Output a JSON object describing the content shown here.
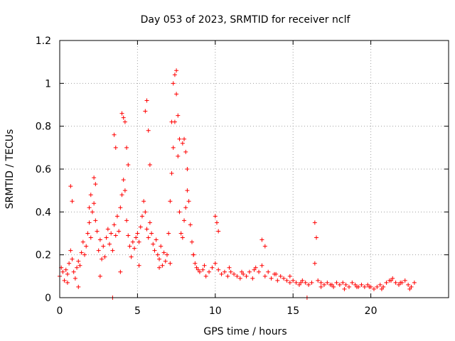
{
  "chart_data": {
    "type": "scatter",
    "title": "Day 053 of 2023, SRMTID for receiver nclf",
    "xlabel": "GPS time / hours",
    "ylabel": "SRMTID / TECUs",
    "xlim": [
      0,
      25
    ],
    "ylim": [
      0,
      1.2
    ],
    "xticks": [
      0,
      5,
      10,
      15,
      20
    ],
    "xtick_labels": [
      "0",
      "5",
      "10",
      "15",
      "20"
    ],
    "yticks": [
      0,
      0.2,
      0.4,
      0.6,
      0.8,
      1.0,
      1.2
    ],
    "ytick_labels": [
      "0",
      "0.2",
      "0.4",
      "0.6",
      "0.8",
      "1",
      "1.2"
    ],
    "grid": true,
    "legend": "none",
    "marker": "plus",
    "color": "#ff0000",
    "series": [
      {
        "name": "SRMTID",
        "x": [
          0.0,
          0.1,
          0.2,
          0.3,
          0.4,
          0.5,
          0.6,
          0.7,
          0.8,
          0.9,
          1.0,
          1.1,
          1.2,
          1.3,
          1.4,
          1.5,
          1.6,
          1.7,
          1.8,
          1.9,
          2.0,
          2.1,
          2.2,
          2.3,
          2.4,
          2.5,
          2.6,
          2.7,
          2.8,
          2.9,
          3.0,
          3.1,
          3.2,
          3.3,
          3.4,
          3.5,
          3.6,
          3.7,
          3.8,
          3.9,
          4.0,
          4.1,
          4.2,
          4.3,
          4.4,
          4.5,
          4.6,
          4.7,
          4.8,
          4.9,
          5.0,
          5.1,
          5.2,
          5.3,
          5.4,
          5.5,
          5.6,
          5.7,
          5.8,
          5.9,
          6.0,
          6.1,
          6.2,
          6.3,
          6.4,
          6.5,
          6.6,
          6.7,
          6.8,
          6.9,
          7.0,
          7.1,
          7.2,
          7.3,
          7.4,
          7.5,
          7.6,
          7.7,
          7.8,
          7.9,
          8.0,
          8.1,
          8.2,
          8.3,
          8.4,
          8.5,
          8.6,
          8.7,
          8.8,
          8.9,
          9.0,
          9.2,
          9.4,
          9.6,
          9.8,
          10.0,
          10.2,
          10.4,
          10.6,
          10.8,
          11.0,
          11.2,
          11.4,
          11.6,
          11.8,
          12.0,
          12.2,
          12.4,
          12.6,
          12.8,
          13.0,
          13.2,
          13.4,
          13.6,
          13.8,
          14.0,
          14.2,
          14.4,
          14.6,
          14.8,
          15.0,
          15.2,
          15.4,
          15.6,
          15.8,
          16.0,
          16.2,
          16.4,
          16.6,
          16.8,
          17.0,
          17.2,
          17.4,
          17.6,
          17.8,
          18.0,
          18.2,
          18.4,
          18.6,
          18.8,
          19.0,
          19.2,
          19.4,
          19.6,
          19.8,
          20.0,
          20.2,
          20.4,
          20.6,
          20.8,
          21.0,
          21.2,
          21.4,
          21.6,
          21.8,
          22.0,
          22.2,
          22.4,
          22.6,
          22.8,
          0.7,
          0.8,
          1.9,
          2.0,
          2.2,
          2.3,
          3.5,
          3.6,
          4.0,
          4.1,
          4.2,
          4.3,
          4.4,
          5.5,
          5.6,
          5.7,
          5.8,
          7.2,
          7.3,
          7.4,
          7.5,
          7.6,
          7.7,
          7.9,
          8.0,
          8.1,
          8.2,
          10.0,
          10.1,
          10.2,
          13.0,
          13.2,
          16.4,
          16.5,
          3.4,
          15.9,
          0.5,
          1.2,
          2.6,
          3.9,
          5.1,
          6.4,
          7.1,
          8.6,
          9.3,
          10.9,
          11.7,
          12.5,
          13.9,
          14.8,
          15.5,
          16.8,
          17.5,
          18.3,
          19.1,
          19.9,
          20.7,
          21.3,
          21.9,
          22.5
        ],
        "y": [
          0.1,
          0.14,
          0.12,
          0.08,
          0.13,
          0.11,
          0.16,
          0.22,
          0.18,
          0.12,
          0.09,
          0.14,
          0.17,
          0.15,
          0.21,
          0.26,
          0.2,
          0.24,
          0.3,
          0.35,
          0.28,
          0.4,
          0.44,
          0.36,
          0.31,
          0.22,
          0.27,
          0.18,
          0.24,
          0.19,
          0.28,
          0.32,
          0.25,
          0.3,
          0.22,
          0.34,
          0.29,
          0.38,
          0.31,
          0.42,
          0.48,
          0.55,
          0.5,
          0.36,
          0.29,
          0.24,
          0.19,
          0.26,
          0.23,
          0.28,
          0.3,
          0.26,
          0.33,
          0.38,
          0.45,
          0.4,
          0.32,
          0.28,
          0.35,
          0.3,
          0.25,
          0.22,
          0.27,
          0.2,
          0.18,
          0.24,
          0.15,
          0.21,
          0.17,
          0.2,
          0.3,
          0.45,
          0.58,
          0.7,
          0.82,
          0.95,
          0.66,
          0.4,
          0.3,
          0.28,
          0.36,
          0.42,
          0.5,
          0.45,
          0.34,
          0.26,
          0.2,
          0.16,
          0.14,
          0.13,
          0.12,
          0.13,
          0.1,
          0.12,
          0.14,
          0.16,
          0.13,
          0.11,
          0.12,
          0.1,
          0.12,
          0.11,
          0.1,
          0.09,
          0.11,
          0.1,
          0.12,
          0.09,
          0.14,
          0.12,
          0.15,
          0.1,
          0.12,
          0.09,
          0.11,
          0.08,
          0.1,
          0.09,
          0.08,
          0.07,
          0.08,
          0.07,
          0.06,
          0.08,
          0.07,
          0.06,
          0.07,
          0.16,
          0.08,
          0.07,
          0.06,
          0.07,
          0.06,
          0.05,
          0.07,
          0.06,
          0.07,
          0.06,
          0.05,
          0.07,
          0.06,
          0.05,
          0.06,
          0.05,
          0.06,
          0.05,
          0.04,
          0.05,
          0.06,
          0.05,
          0.07,
          0.08,
          0.09,
          0.07,
          0.06,
          0.07,
          0.08,
          0.06,
          0.05,
          0.07,
          0.52,
          0.45,
          0.42,
          0.48,
          0.56,
          0.53,
          0.76,
          0.7,
          0.86,
          0.84,
          0.82,
          0.7,
          0.62,
          0.87,
          0.92,
          0.78,
          0.62,
          0.82,
          1.0,
          1.04,
          1.06,
          0.85,
          0.74,
          0.72,
          0.74,
          0.68,
          0.6,
          0.38,
          0.35,
          0.31,
          0.27,
          0.24,
          0.35,
          0.28,
          0.0,
          0.0,
          0.07,
          0.05,
          0.1,
          0.12,
          0.15,
          0.14,
          0.16,
          0.2,
          0.15,
          0.14,
          0.12,
          0.13,
          0.11,
          0.1,
          0.07,
          0.05,
          0.06,
          0.04,
          0.05,
          0.05,
          0.04,
          0.08,
          0.07,
          0.04
        ]
      }
    ]
  }
}
